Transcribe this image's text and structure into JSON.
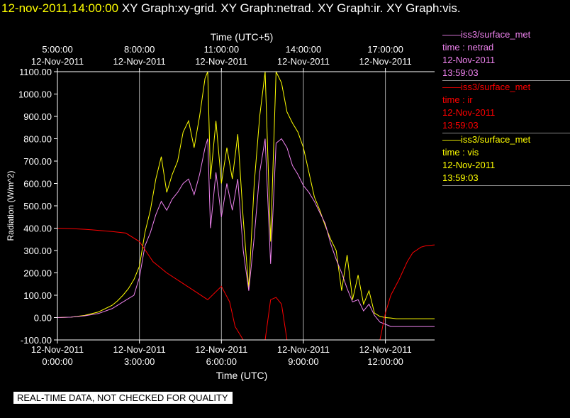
{
  "header": {
    "timestamp": "12-nov-2011,14:00:00",
    "graphs": "XY Graph:xy-grid.  XY Graph:netrad.  XY Graph:ir.  XY Graph:vis."
  },
  "notice": "REAL-TIME DATA, NOT CHECKED FOR QUALITY",
  "legend": [
    {
      "station": "iss3/surface_met",
      "variable": "time : netrad",
      "date": "12-Nov-2011",
      "time": "13:59:03",
      "color": "#ee82ee"
    },
    {
      "station": "iss3/surface_met",
      "variable": "time : ir",
      "date": "12-Nov-2011",
      "time": "13:59:03",
      "color": "#ff0000"
    },
    {
      "station": "iss3/surface_met",
      "variable": "time : vis",
      "date": "12-Nov-2011",
      "time": "13:59:03",
      "color": "#ffff00"
    }
  ],
  "chart_data": {
    "type": "line",
    "ylabel": "Radiation (W/m^2)",
    "xlabel": "Time (UTC)",
    "top_xlabel": "Time (UTC+5)",
    "xlim": [
      0,
      13.8
    ],
    "ylim": [
      -100,
      1100
    ],
    "y_ticks": [
      "1100.00",
      "1000.00",
      "900.00",
      "800.00",
      "700.00",
      "600.00",
      "500.00",
      "400.00",
      "300.00",
      "200.00",
      "100.00",
      "0.00",
      "-100.00"
    ],
    "y_tick_values": [
      1100,
      1000,
      900,
      800,
      700,
      600,
      500,
      400,
      300,
      200,
      100,
      0,
      -100
    ],
    "x_ticks": [
      {
        "value": 0,
        "date": "12-Nov-2011",
        "time": "0:00:00"
      },
      {
        "value": 3,
        "date": "12-Nov-2011",
        "time": "3:00:00"
      },
      {
        "value": 6,
        "date": "12-Nov-2011",
        "time": "6:00:00"
      },
      {
        "value": 9,
        "date": "12-Nov-2011",
        "time": "9:00:00"
      },
      {
        "value": 12,
        "date": "12-Nov-2011",
        "time": "12:00:00"
      }
    ],
    "top_x_ticks": [
      {
        "value": 0,
        "time": "5:00:00",
        "date": "12-Nov-2011"
      },
      {
        "value": 3,
        "time": "8:00:00",
        "date": "12-Nov-2011"
      },
      {
        "value": 6,
        "time": "11:00:00",
        "date": "12-Nov-2011"
      },
      {
        "value": 9,
        "time": "14:00:00",
        "date": "12-Nov-2011"
      },
      {
        "value": 12,
        "time": "17:00:00",
        "date": "12-Nov-2011"
      }
    ],
    "grid": "vertical",
    "series": [
      {
        "name": "time : vis",
        "color": "#ffff00",
        "x": [
          0,
          0.5,
          1,
          1.5,
          2,
          2.2,
          2.4,
          2.6,
          2.8,
          3.0,
          3.2,
          3.4,
          3.6,
          3.8,
          4.0,
          4.2,
          4.4,
          4.6,
          4.8,
          5.0,
          5.2,
          5.4,
          5.5,
          5.6,
          5.8,
          6.0,
          6.2,
          6.4,
          6.6,
          6.8,
          7.0,
          7.2,
          7.4,
          7.6,
          7.8,
          8.0,
          8.2,
          8.4,
          8.6,
          8.8,
          9.0,
          9.2,
          9.4,
          9.6,
          9.8,
          10.0,
          10.2,
          10.4,
          10.6,
          10.8,
          11.0,
          11.2,
          11.4,
          11.6,
          11.8,
          12.0,
          12.2,
          12.4,
          12.6,
          12.8,
          13.0,
          13.5,
          13.8
        ],
        "y": [
          0,
          2,
          10,
          25,
          55,
          75,
          100,
          130,
          170,
          230,
          380,
          480,
          620,
          720,
          560,
          640,
          700,
          830,
          880,
          760,
          900,
          1070,
          1100,
          620,
          880,
          600,
          760,
          620,
          820,
          440,
          130,
          600,
          900,
          1100,
          340,
          1100,
          1050,
          920,
          870,
          830,
          760,
          650,
          540,
          480,
          410,
          350,
          300,
          120,
          280,
          80,
          190,
          60,
          120,
          20,
          5,
          0,
          -2,
          -5,
          -5,
          -5,
          -5,
          -5,
          -5
        ]
      },
      {
        "name": "time : netrad",
        "color": "#ee82ee",
        "x": [
          0,
          0.5,
          1,
          1.5,
          2,
          2.2,
          2.4,
          2.6,
          2.8,
          3.0,
          3.2,
          3.4,
          3.6,
          3.8,
          4.0,
          4.2,
          4.4,
          4.6,
          4.8,
          5.0,
          5.2,
          5.4,
          5.5,
          5.6,
          5.8,
          6.0,
          6.2,
          6.4,
          6.6,
          6.8,
          7.0,
          7.2,
          7.4,
          7.6,
          7.8,
          8.0,
          8.2,
          8.4,
          8.6,
          8.8,
          9.0,
          9.2,
          9.4,
          9.6,
          9.8,
          10.0,
          10.2,
          10.4,
          10.6,
          10.8,
          11.0,
          11.2,
          11.4,
          11.6,
          11.8,
          12.0,
          12.2,
          12.4,
          12.6,
          12.8,
          13.0,
          13.5,
          13.8
        ],
        "y": [
          0,
          2,
          8,
          18,
          40,
          55,
          70,
          85,
          100,
          180,
          320,
          380,
          460,
          520,
          480,
          530,
          560,
          600,
          620,
          550,
          640,
          760,
          800,
          400,
          650,
          450,
          600,
          480,
          620,
          300,
          120,
          360,
          650,
          800,
          240,
          780,
          800,
          760,
          680,
          640,
          590,
          560,
          520,
          470,
          420,
          330,
          260,
          200,
          130,
          70,
          80,
          30,
          60,
          10,
          -20,
          -30,
          -40,
          -40,
          -40,
          -40,
          -40,
          -40,
          -40
        ]
      },
      {
        "name": "time : ir",
        "color": "#ff0000",
        "x": [
          0,
          0.5,
          1,
          1.5,
          2,
          2.5,
          3.0,
          3.5,
          4.0,
          4.5,
          5.0,
          5.5,
          6.0,
          6.3,
          6.5,
          6.8,
          7.0,
          7.2,
          7.4,
          7.6,
          7.8,
          8.0,
          8.2,
          8.4,
          8.6,
          8.8,
          9.0,
          9.5,
          10.0,
          10.5,
          11.0,
          11.5,
          11.8,
          12.0,
          12.2,
          12.5,
          12.8,
          13.0,
          13.3,
          13.5,
          13.8
        ],
        "y": [
          400,
          398,
          395,
          390,
          385,
          378,
          340,
          250,
          200,
          160,
          120,
          80,
          140,
          70,
          -40,
          -100,
          -100,
          -100,
          -100,
          -100,
          80,
          90,
          60,
          -100,
          -100,
          -100,
          -100,
          -100,
          -100,
          -100,
          -100,
          -100,
          -100,
          20,
          100,
          170,
          250,
          290,
          315,
          322,
          325
        ]
      }
    ]
  }
}
